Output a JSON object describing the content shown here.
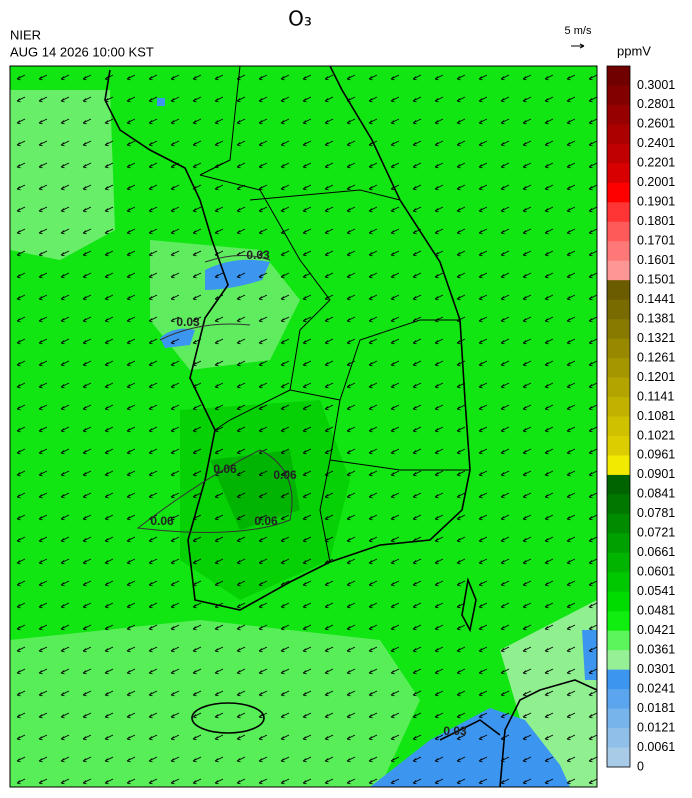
{
  "header": {
    "title": "O₃",
    "agency": "NIER",
    "datetime": "AUG 14 2026 10:00 KST",
    "vector_scale": "5 m/s",
    "unit": "ppmV"
  },
  "contour_labels": [
    "0.03",
    "0.03",
    "0.06",
    "0.06",
    "0.06",
    "0.06",
    "0.03"
  ],
  "colorbar": {
    "labels": [
      0.3001,
      0.2801,
      0.2601,
      0.2401,
      0.2201,
      0.2001,
      0.1901,
      0.1801,
      0.1701,
      0.1601,
      0.1501,
      0.1441,
      0.1381,
      0.1321,
      0.1261,
      0.1201,
      0.1141,
      0.1081,
      0.1021,
      0.0961,
      0.0901,
      0.0841,
      0.0781,
      0.0721,
      0.0661,
      0.0601,
      0.0541,
      0.0481,
      0.0421,
      0.0361,
      0.0301,
      0.0241,
      0.0181,
      0.0121,
      0.0061,
      0
    ],
    "colors": [
      "#700000",
      "#820000",
      "#960000",
      "#aa0000",
      "#c00000",
      "#d80000",
      "#ff0000",
      "#ff3434",
      "#ff5a5a",
      "#ff7878",
      "#ff9696",
      "#6b5c00",
      "#7a6b00",
      "#887900",
      "#978800",
      "#a59600",
      "#b3a400",
      "#c1b200",
      "#cfc000",
      "#dccd00",
      "#f2ea00",
      "#006400",
      "#007800",
      "#008c00",
      "#00a000",
      "#00b400",
      "#00c800",
      "#00dc00",
      "#10ee10",
      "#5cf55c",
      "#96f096",
      "#3c96f0",
      "#5aa5ee",
      "#78b4ec",
      "#90c0ea",
      "#a8cce8"
    ]
  }
}
